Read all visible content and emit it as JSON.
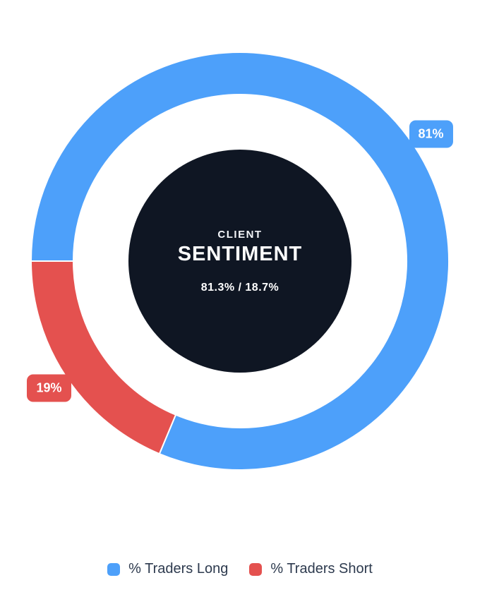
{
  "chart_data": {
    "type": "pie",
    "subtype": "doughnut",
    "series": [
      {
        "name": "% Traders Long",
        "value": 81.3,
        "badge_label": "81%",
        "color": "#4DA0FA"
      },
      {
        "name": "% Traders Short",
        "value": 18.7,
        "badge_label": "19%",
        "color": "#E4514F"
      }
    ],
    "total": 100,
    "rotation_deg_cw_from_top": 270,
    "direction": "clockwise",
    "center": {
      "eyebrow": "CLIENT",
      "title": "SENTIMENT",
      "ratio": "81.3% / 18.7%"
    },
    "legend_position": "bottom"
  },
  "colors": {
    "long": "#4DA0FA",
    "short": "#E4514F",
    "center_disc": "#0F1623",
    "text_on_dark": "#FFFFFF",
    "legend_text": "#2D3A4E",
    "background": "#FFFFFF",
    "slice_border": "#FFFFFF"
  }
}
